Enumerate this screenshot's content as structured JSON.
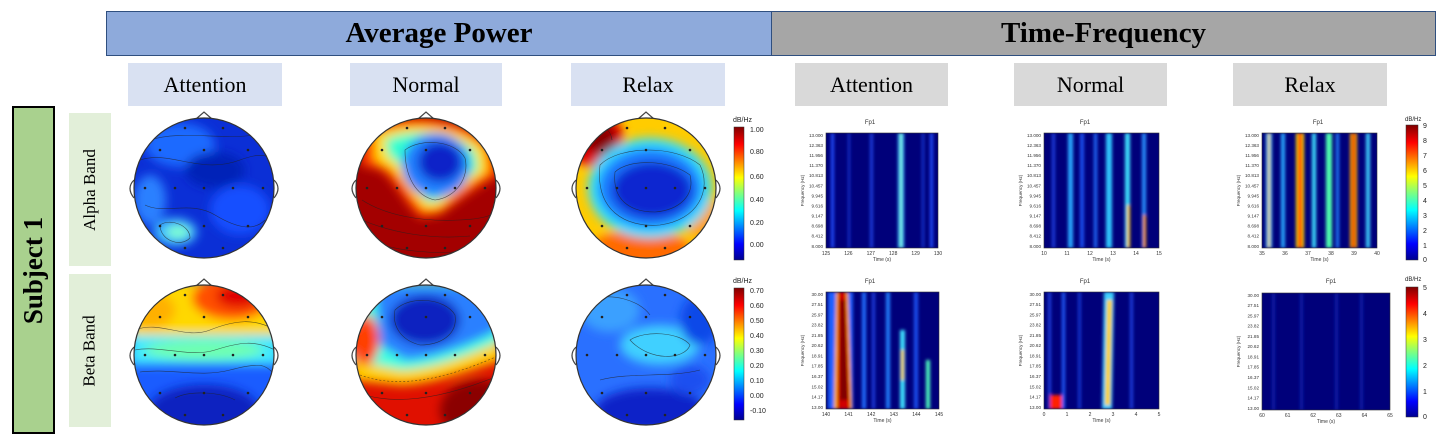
{
  "headers": {
    "average_power": "Average Power",
    "time_frequency": "Time-Frequency"
  },
  "conditions": [
    "Attention",
    "Normal",
    "Relax"
  ],
  "subject_label": "Subject 1",
  "bands": [
    "Alpha Band",
    "Beta Band"
  ],
  "colorbars": {
    "unit": "dB/Hz",
    "topo_alpha_ticks": [
      "1.00",
      "0.80",
      "0.60",
      "0.40",
      "0.20",
      "0.00"
    ],
    "topo_beta_ticks": [
      "0.70",
      "0.60",
      "0.50",
      "0.40",
      "0.30",
      "0.20",
      "0.10",
      "0.00",
      "-0.10"
    ],
    "tf_alpha_ticks": [
      "9",
      "8",
      "7",
      "6",
      "5",
      "4",
      "3",
      "2",
      "1",
      "0"
    ],
    "tf_beta_ticks": [
      "5",
      "4",
      "3",
      "2",
      "1",
      "0"
    ]
  },
  "spectrograms": {
    "channel": "Fp1",
    "xlabel": "Time (s)",
    "ylabel": "Frequency (Hz)",
    "alpha_yticks": [
      "13.000",
      "12.363",
      "11.956",
      "11.370",
      "10.813",
      "10.457",
      "9.945",
      "9.616",
      "9.147",
      "8.698",
      "8.412",
      "8.000"
    ],
    "beta_yticks": [
      "30.00",
      "27.51",
      "25.97",
      "23.82",
      "21.85",
      "20.62",
      "18.91",
      "17.85",
      "16.37",
      "15.02",
      "14.17",
      "13.00"
    ],
    "panels": [
      {
        "xticks": [
          "125",
          "126",
          "127",
          "128",
          "129",
          "130"
        ]
      },
      {
        "xticks": [
          "10",
          "11",
          "12",
          "13",
          "14",
          "15"
        ]
      },
      {
        "xticks": [
          "35",
          "36",
          "37",
          "38",
          "39",
          "40"
        ]
      },
      {
        "xticks": [
          "140",
          "141",
          "142",
          "143",
          "144",
          "145"
        ]
      },
      {
        "xticks": [
          "0",
          "1",
          "2",
          "3",
          "4",
          "5"
        ]
      },
      {
        "xticks": [
          "60",
          "61",
          "62",
          "63",
          "64",
          "65"
        ]
      }
    ]
  },
  "colors": {
    "avg_header": "#8eaadb",
    "tf_header": "#a6a6a6",
    "avg_condition": "#d9e1f2",
    "tf_condition": "#d9d9d9",
    "subject": "#a9d18e",
    "band": "#e2efd9"
  }
}
